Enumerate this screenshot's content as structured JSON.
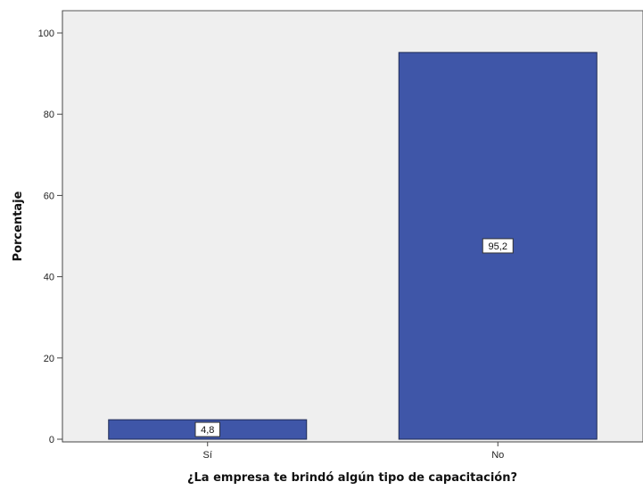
{
  "chart_data": {
    "type": "bar",
    "categories": [
      "Sí",
      "No"
    ],
    "values": [
      4.8,
      95.2
    ],
    "data_labels": [
      "4,8",
      "95,2"
    ],
    "title": "",
    "xlabel": "¿La empresa te brindó algún tipo de capacitación?",
    "ylabel": "Porcentaje",
    "ylim": [
      0,
      100
    ],
    "yticks": [
      0,
      20,
      40,
      60,
      80,
      100
    ],
    "bar_color": "#3f56a8",
    "plot_background": "#efefef",
    "grid": false,
    "legend": "none"
  }
}
